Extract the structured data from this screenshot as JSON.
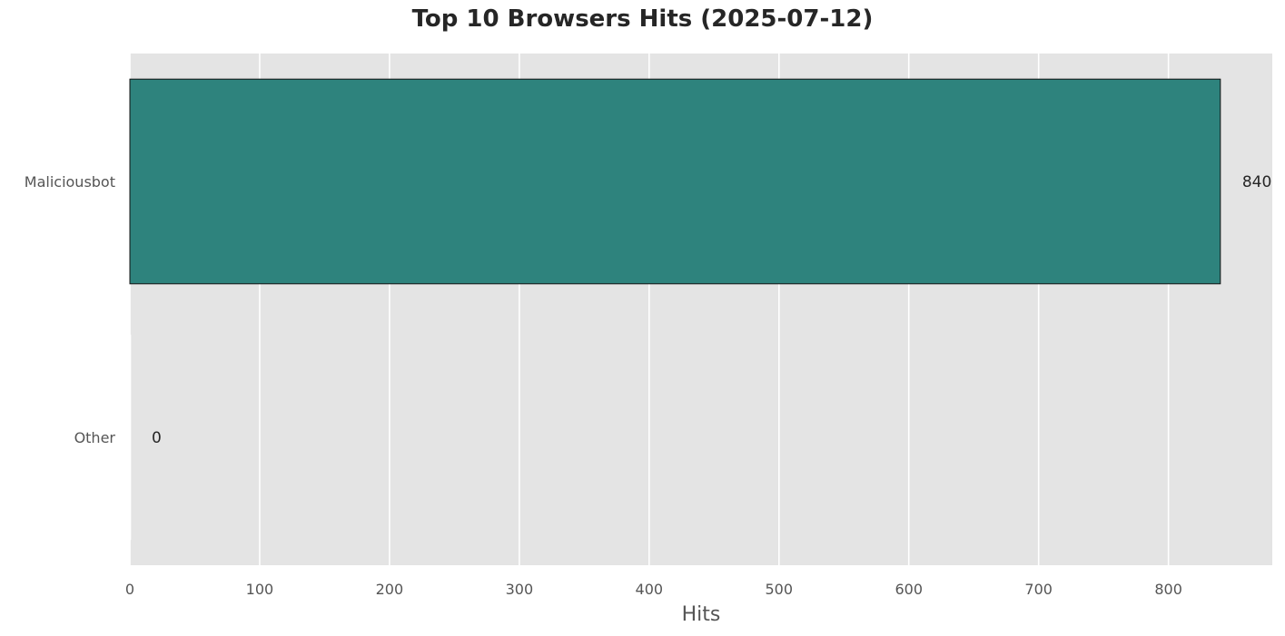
{
  "chart_data": {
    "type": "bar",
    "orientation": "horizontal",
    "title": "Top 10 Browsers Hits (2025-07-12)",
    "xlabel": "Hits",
    "ylabel": "",
    "categories": [
      "Maliciousbot",
      "Other"
    ],
    "values": [
      840,
      0
    ],
    "data_labels": [
      "840",
      "0"
    ],
    "xlim": [
      0,
      880
    ],
    "xticks": [
      0,
      100,
      200,
      300,
      400,
      500,
      600,
      700,
      800
    ],
    "xtick_labels": [
      "0",
      "100",
      "200",
      "300",
      "400",
      "500",
      "600",
      "700",
      "800"
    ],
    "grid": true,
    "colors": {
      "bar": "#2e837d",
      "bar_edge": "#111111",
      "plot_background": "#e4e4e4",
      "grid": "#ffffff"
    }
  }
}
